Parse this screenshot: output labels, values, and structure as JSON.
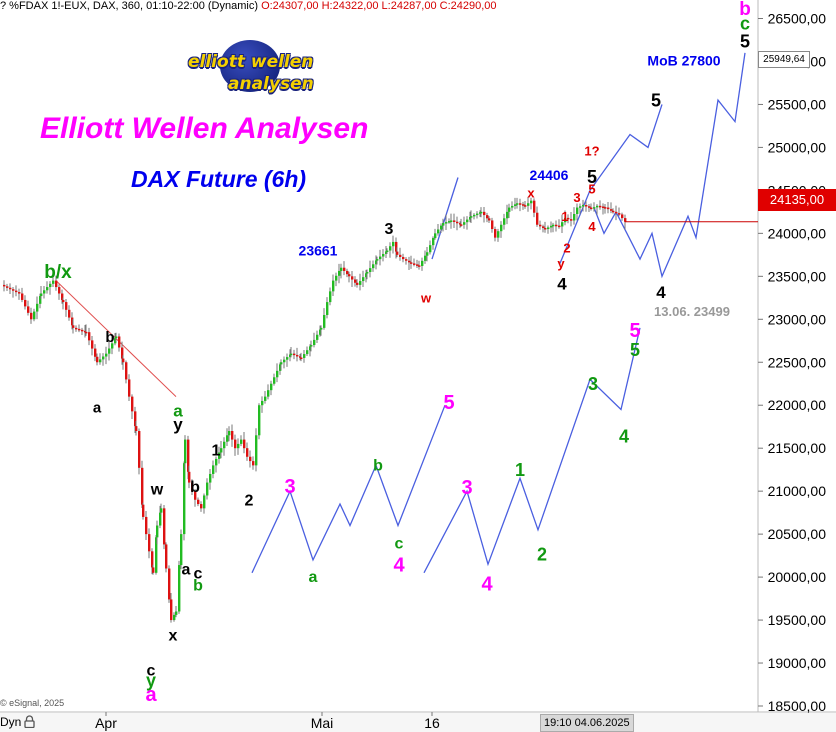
{
  "header": {
    "instrument": "? %FDAX 1!-EUX, DAX, 360, 01:10-22:00 (Dynamic)",
    "ohlc": "O:24307,00 H:24322,00 L:24287,00 C:24290,00"
  },
  "logo": {
    "word1": "elliott",
    "word2": "wellen",
    "word3": "analysen"
  },
  "title": "Elliott Wellen Analysen",
  "subtitle": "DAX Future (6h)",
  "copyright": "© eSignal, 2025",
  "footer": {
    "dyn": "Dyn",
    "date_tag": "19:10 04.06.2025"
  },
  "colors": {
    "up_candle": "#22bb22",
    "down_candle": "#dd1111",
    "price_line": "#cc0000",
    "projection": "#4a5fe0",
    "magenta": "#ff00ff",
    "green": "#119911",
    "blue": "#0000ee",
    "red": "#e00000",
    "grey": "#999999",
    "black": "#000000"
  },
  "chart_data": {
    "type": "candlestick",
    "y_axis": {
      "range": [
        18300,
        26750
      ],
      "ticks": [
        "26500,00",
        "26000,00",
        "25500,00",
        "25000,00",
        "24500,00",
        "24000,00",
        "23500,00",
        "23000,00",
        "22500,00",
        "22000,00",
        "21500,00",
        "21000,00",
        "20500,00",
        "20000,00",
        "19500,00",
        "19000,00",
        "18500,00"
      ],
      "tick_values": [
        26500,
        26000,
        25500,
        25000,
        24500,
        24000,
        23500,
        23000,
        22500,
        22000,
        21500,
        21000,
        20500,
        20000,
        19500,
        19000,
        18500
      ]
    },
    "x_axis": {
      "labels": [
        "Apr",
        "Mai",
        "16"
      ]
    },
    "last_price": "24135,00",
    "last_price_value": 24135,
    "high_marker": "25949,64",
    "high_marker_value": 25949.64,
    "price_series": [
      [
        0,
        23400
      ],
      [
        18,
        23300
      ],
      [
        30,
        23000
      ],
      [
        40,
        23300
      ],
      [
        52,
        23450
      ],
      [
        62,
        23200
      ],
      [
        72,
        22900
      ],
      [
        85,
        22850
      ],
      [
        96,
        22500
      ],
      [
        105,
        22600
      ],
      [
        115,
        22800
      ],
      [
        122,
        22500
      ],
      [
        128,
        22100
      ],
      [
        135,
        21700
      ],
      [
        142,
        20700
      ],
      [
        148,
        20300
      ],
      [
        152,
        20050
      ],
      [
        156,
        20600
      ],
      [
        160,
        20800
      ],
      [
        165,
        20100
      ],
      [
        170,
        19500
      ],
      [
        175,
        19600
      ],
      [
        180,
        20500
      ],
      [
        184,
        21600
      ],
      [
        188,
        21100
      ],
      [
        194,
        20900
      ],
      [
        200,
        20800
      ],
      [
        206,
        21100
      ],
      [
        212,
        21300
      ],
      [
        220,
        21500
      ],
      [
        228,
        21700
      ],
      [
        234,
        21500
      ],
      [
        240,
        21600
      ],
      [
        246,
        21400
      ],
      [
        252,
        21300
      ],
      [
        258,
        22000
      ],
      [
        264,
        22100
      ],
      [
        270,
        22250
      ],
      [
        280,
        22500
      ],
      [
        290,
        22600
      ],
      [
        300,
        22550
      ],
      [
        310,
        22700
      ],
      [
        320,
        22900
      ],
      [
        326,
        23200
      ],
      [
        332,
        23450
      ],
      [
        340,
        23600
      ],
      [
        348,
        23500
      ],
      [
        356,
        23400
      ],
      [
        366,
        23550
      ],
      [
        376,
        23700
      ],
      [
        386,
        23800
      ],
      [
        392,
        23900
      ],
      [
        396,
        23750
      ],
      [
        402,
        23700
      ],
      [
        410,
        23650
      ],
      [
        418,
        23620
      ],
      [
        426,
        23780
      ],
      [
        434,
        24000
      ],
      [
        442,
        24120
      ],
      [
        450,
        24150
      ],
      [
        460,
        24100
      ],
      [
        470,
        24200
      ],
      [
        480,
        24250
      ],
      [
        488,
        24150
      ],
      [
        494,
        23950
      ],
      [
        500,
        24100
      ],
      [
        508,
        24300
      ],
      [
        516,
        24350
      ],
      [
        524,
        24320
      ],
      [
        530,
        24380
      ],
      [
        536,
        24100
      ],
      [
        544,
        24050
      ],
      [
        552,
        24100
      ],
      [
        558,
        24080
      ],
      [
        564,
        24180
      ],
      [
        570,
        24150
      ],
      [
        576,
        24300
      ],
      [
        582,
        24330
      ],
      [
        590,
        24290
      ],
      [
        596,
        24320
      ],
      [
        604,
        24300
      ],
      [
        612,
        24250
      ],
      [
        618,
        24220
      ],
      [
        624,
        24135
      ]
    ],
    "projections": [
      [
        [
          252,
          20050
        ],
        [
          290,
          21000
        ],
        [
          313,
          20200
        ],
        [
          340,
          20850
        ],
        [
          350,
          20600
        ],
        [
          376,
          21300
        ],
        [
          398,
          20600
        ],
        [
          445,
          22000
        ]
      ],
      [
        [
          424,
          20050
        ],
        [
          467,
          21000
        ],
        [
          488,
          20150
        ],
        [
          520,
          21150
        ],
        [
          538,
          20550
        ],
        [
          590,
          22300
        ],
        [
          621,
          21950
        ],
        [
          640,
          22900
        ]
      ],
      [
        [
          432,
          23700
        ],
        [
          458,
          24650
        ]
      ],
      [
        [
          560,
          23650
        ],
        [
          590,
          24500
        ],
        [
          630,
          25150
        ],
        [
          648,
          25000
        ],
        [
          662,
          25500
        ]
      ],
      [
        [
          594,
          24300
        ],
        [
          604,
          24000
        ],
        [
          616,
          24250
        ],
        [
          640,
          23700
        ],
        [
          652,
          24000
        ],
        [
          662,
          23500
        ],
        [
          688,
          24200
        ],
        [
          696,
          23950
        ],
        [
          718,
          25550
        ],
        [
          735,
          25300
        ],
        [
          745,
          26100
        ]
      ]
    ],
    "trendline": [
      [
        56,
        23450
      ],
      [
        176,
        22100
      ]
    ],
    "wave_labels": [
      {
        "text": "b/x",
        "color": "green",
        "x": 58,
        "y": 23560,
        "size": 19
      },
      {
        "text": "b",
        "color": "black",
        "x": 110,
        "y": 22800,
        "size": 15
      },
      {
        "text": "a",
        "color": "black",
        "x": 97,
        "y": 21980,
        "size": 15
      },
      {
        "text": "a",
        "color": "green",
        "x": 178,
        "y": 21940,
        "size": 17
      },
      {
        "text": "y",
        "color": "black",
        "x": 178,
        "y": 21780,
        "size": 17
      },
      {
        "text": "w",
        "color": "black",
        "x": 157,
        "y": 21030,
        "size": 16
      },
      {
        "text": "1",
        "color": "black",
        "x": 216,
        "y": 21480,
        "size": 16
      },
      {
        "text": "b",
        "color": "black",
        "x": 195,
        "y": 21060,
        "size": 16
      },
      {
        "text": "2",
        "color": "black",
        "x": 249,
        "y": 20900,
        "size": 16
      },
      {
        "text": "a",
        "color": "black",
        "x": 186,
        "y": 20100,
        "size": 16
      },
      {
        "text": "c",
        "color": "black",
        "x": 198,
        "y": 20050,
        "size": 16
      },
      {
        "text": "b",
        "color": "green",
        "x": 198,
        "y": 19910,
        "size": 16
      },
      {
        "text": "x",
        "color": "black",
        "x": 173,
        "y": 19330,
        "size": 16
      },
      {
        "text": "c",
        "color": "black",
        "x": 151,
        "y": 18920,
        "size": 16
      },
      {
        "text": "y",
        "color": "green",
        "x": 151,
        "y": 18800,
        "size": 18
      },
      {
        "text": "a",
        "color": "magenta",
        "x": 151,
        "y": 18640,
        "size": 20
      },
      {
        "text": "23661",
        "color": "blue",
        "x": 318,
        "y": 23800,
        "size": 14
      },
      {
        "text": "3",
        "color": "black",
        "x": 389,
        "y": 24060,
        "size": 16
      },
      {
        "text": "w",
        "color": "red",
        "x": 426,
        "y": 23250,
        "size": 13
      },
      {
        "text": "24406",
        "color": "blue",
        "x": 549,
        "y": 24680,
        "size": 14
      },
      {
        "text": "x",
        "color": "red",
        "x": 531,
        "y": 24470,
        "size": 13
      },
      {
        "text": "5",
        "color": "black",
        "x": 592,
        "y": 24660,
        "size": 18
      },
      {
        "text": "1?",
        "color": "red",
        "x": 592,
        "y": 24960,
        "size": 13
      },
      {
        "text": "3",
        "color": "red",
        "x": 577,
        "y": 24420,
        "size": 13
      },
      {
        "text": "5",
        "color": "red",
        "x": 592,
        "y": 24520,
        "size": 13
      },
      {
        "text": "1",
        "color": "red",
        "x": 565,
        "y": 24200,
        "size": 13
      },
      {
        "text": "4",
        "color": "red",
        "x": 592,
        "y": 24080,
        "size": 13
      },
      {
        "text": "2",
        "color": "red",
        "x": 567,
        "y": 23830,
        "size": 13
      },
      {
        "text": "y",
        "color": "red",
        "x": 561,
        "y": 23650,
        "size": 13
      },
      {
        "text": "4",
        "color": "black",
        "x": 562,
        "y": 23420,
        "size": 17
      },
      {
        "text": "5",
        "color": "black",
        "x": 656,
        "y": 25550,
        "size": 18
      },
      {
        "text": "MoB 27800",
        "color": "blue",
        "x": 684,
        "y": 26010,
        "size": 14
      },
      {
        "text": "4",
        "color": "black",
        "x": 661,
        "y": 23320,
        "size": 17
      },
      {
        "text": "13.06. 23499",
        "color": "grey",
        "x": 692,
        "y": 23090,
        "size": 13
      },
      {
        "text": "b",
        "color": "magenta",
        "x": 745,
        "y": 26620,
        "size": 19
      },
      {
        "text": "c",
        "color": "green",
        "x": 745,
        "y": 26450,
        "size": 18
      },
      {
        "text": "5",
        "color": "black",
        "x": 745,
        "y": 26240,
        "size": 18
      },
      {
        "text": "5",
        "color": "magenta",
        "x": 635,
        "y": 22880,
        "size": 20
      },
      {
        "text": "5",
        "color": "green",
        "x": 635,
        "y": 22650,
        "size": 18
      },
      {
        "text": "3",
        "color": "green",
        "x": 593,
        "y": 22250,
        "size": 18
      },
      {
        "text": "4",
        "color": "green",
        "x": 624,
        "y": 21640,
        "size": 18
      },
      {
        "text": "1",
        "color": "green",
        "x": 520,
        "y": 21250,
        "size": 18
      },
      {
        "text": "2",
        "color": "green",
        "x": 542,
        "y": 20270,
        "size": 18
      },
      {
        "text": "3",
        "color": "magenta",
        "x": 467,
        "y": 21050,
        "size": 20
      },
      {
        "text": "4",
        "color": "magenta",
        "x": 487,
        "y": 19930,
        "size": 20
      },
      {
        "text": "5",
        "color": "magenta",
        "x": 449,
        "y": 22040,
        "size": 20
      },
      {
        "text": "c",
        "color": "green",
        "x": 399,
        "y": 20400,
        "size": 16
      },
      {
        "text": "4",
        "color": "magenta",
        "x": 399,
        "y": 20150,
        "size": 20
      },
      {
        "text": "b",
        "color": "green",
        "x": 378,
        "y": 21310,
        "size": 16
      },
      {
        "text": "3",
        "color": "magenta",
        "x": 290,
        "y": 21060,
        "size": 20
      },
      {
        "text": "a",
        "color": "green",
        "x": 313,
        "y": 20010,
        "size": 16
      }
    ]
  }
}
